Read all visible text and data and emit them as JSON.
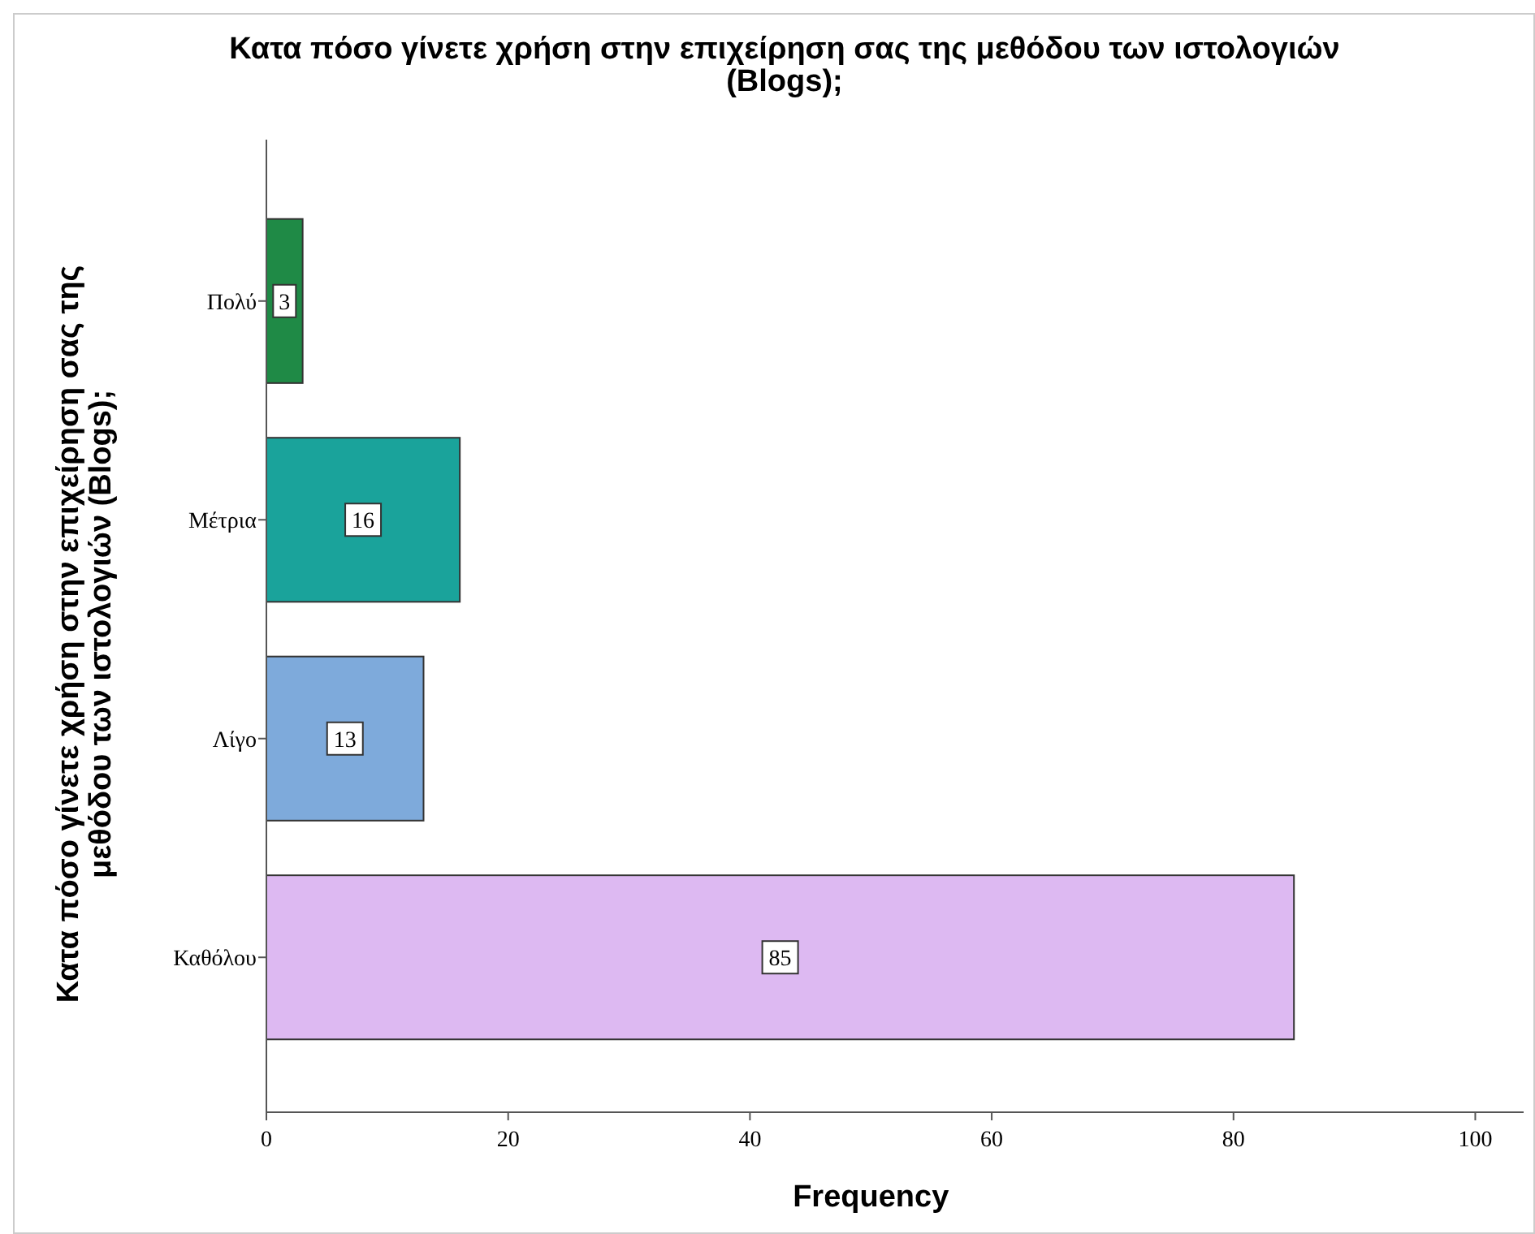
{
  "chart_data": {
    "type": "bar",
    "orientation": "horizontal",
    "title": "Κατα πόσο γίνετε χρήση στην επιχείρηση σας της μεθόδου των ιστολογιών (Blogs);",
    "xlabel": "Frequency",
    "ylabel": "Κατα πόσο γίνετε χρήση στην επιχείρηση σας της μεθόδου των ιστολογιών (Blogs);",
    "categories": [
      "Πολύ",
      "Μέτρια",
      "Λίγο",
      "Καθόλου"
    ],
    "values": [
      3,
      16,
      13,
      85
    ],
    "colors": [
      "#1f8a46",
      "#1aa39b",
      "#7eaadb",
      "#ddb9f2"
    ],
    "xlim": [
      0,
      104
    ],
    "xticks": [
      0,
      20,
      40,
      60,
      80,
      100
    ],
    "data_labels": true
  }
}
